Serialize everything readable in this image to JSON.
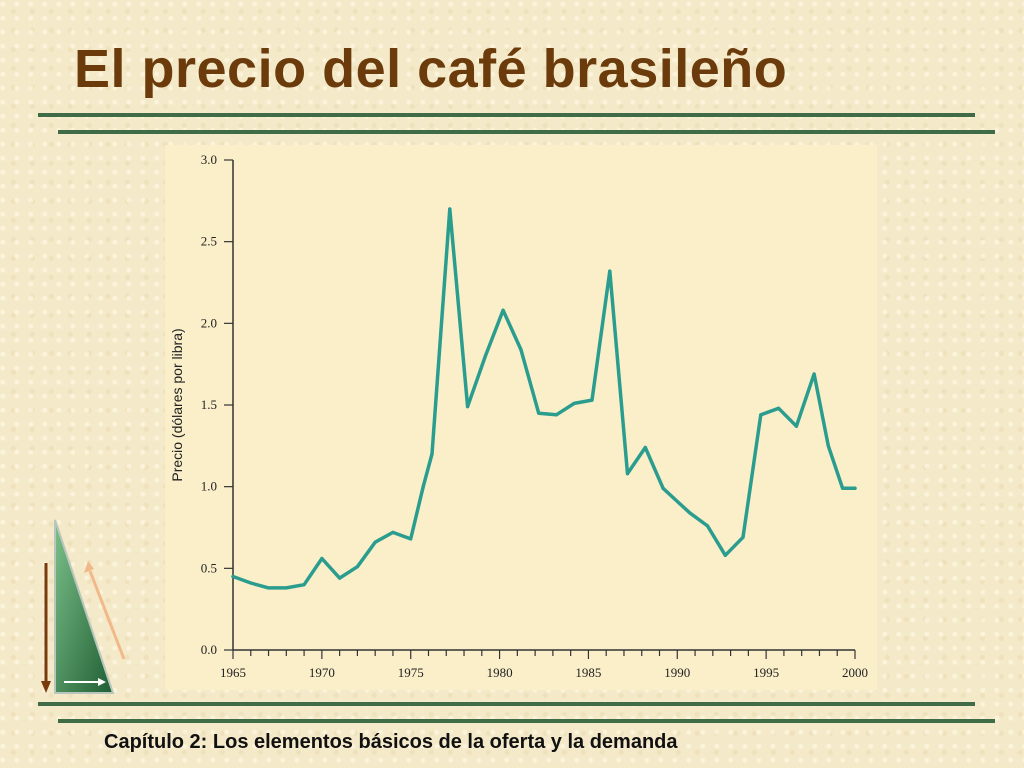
{
  "title": "El precio del café brasileño",
  "footer": "Capítulo 2: Los elementos básicos de la oferta y la demanda",
  "colors": {
    "title": "#6b3b0c",
    "rule": "#3f6b46",
    "line": "#2a9d8f",
    "panel": "#fbefca"
  },
  "chart_data": {
    "type": "line",
    "xlabel": "",
    "ylabel": "Precio (dólares por libra)",
    "xlim": [
      1965,
      2000
    ],
    "ylim": [
      0,
      3.0
    ],
    "xticks": [
      "1965",
      "1970",
      "1975",
      "1980",
      "1985",
      "1990",
      "1995",
      "2000"
    ],
    "yticks": [
      "0.0",
      "0.5",
      "1.0",
      "1.5",
      "2.0",
      "2.5",
      "3.0"
    ],
    "x": [
      1965,
      1966,
      1967,
      1968,
      1969,
      1970,
      1971,
      1972,
      1973,
      1974,
      1975,
      1975.7,
      1976.2,
      1977.2,
      1978.2,
      1979.2,
      1980.2,
      1981.2,
      1982.2,
      1983.2,
      1984.2,
      1985.2,
      1986.2,
      1987.2,
      1988.2,
      1989.2,
      1989.8,
      1990.7,
      1991.7,
      1992.7,
      1993.7,
      1994.7,
      1995.7,
      1996.7,
      1997.7,
      1998.5,
      1999.3,
      2000
    ],
    "series": [
      {
        "values": [
          0.45,
          0.41,
          0.38,
          0.38,
          0.4,
          0.56,
          0.44,
          0.51,
          0.66,
          0.72,
          0.68,
          1.0,
          1.2,
          2.7,
          1.49,
          1.8,
          2.08,
          1.84,
          1.45,
          1.44,
          1.51,
          1.53,
          2.32,
          1.08,
          1.24,
          0.99,
          0.93,
          0.84,
          0.76,
          0.58,
          0.69,
          1.44,
          1.48,
          1.37,
          1.69,
          1.25,
          0.99,
          0.99
        ]
      }
    ],
    "grid": false,
    "legend": "none"
  }
}
